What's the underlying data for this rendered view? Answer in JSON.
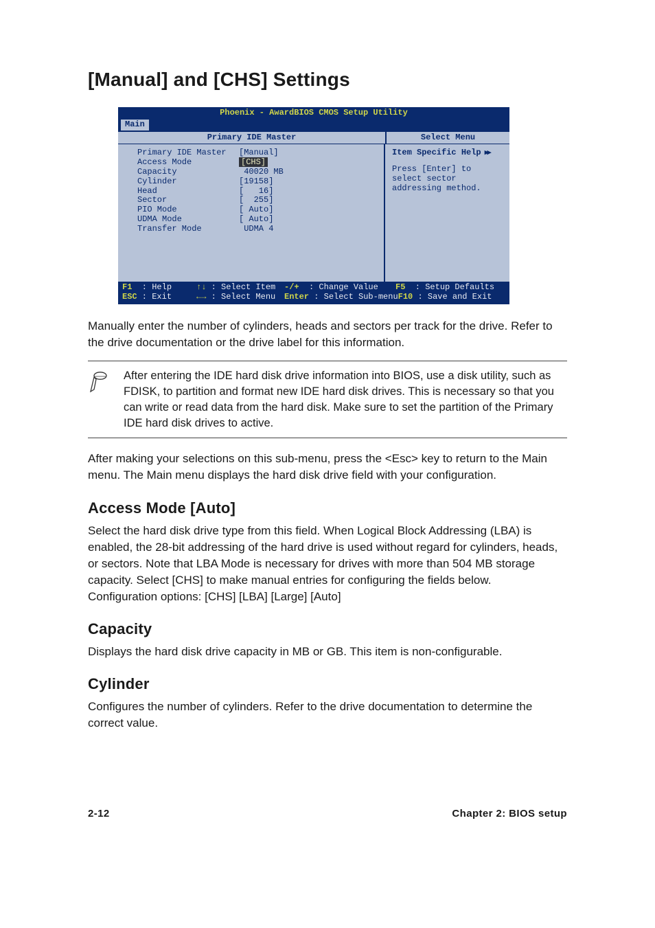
{
  "page_title": "[Manual] and [CHS] Settings",
  "bios": {
    "banner": "Phoenix - AwardBIOS CMOS Setup Utility",
    "tab": "Main",
    "panel_title_left": "Primary IDE Master",
    "panel_title_right": "Select Menu",
    "help_title": "Item Specific Help",
    "help_text": "Press [Enter] to\nselect sector\naddressing method.",
    "rows": [
      {
        "label": "Primary IDE Master",
        "value": "[Manual]",
        "hl": false
      },
      {
        "label": "Access Mode",
        "value": "[CHS]",
        "hl": true
      },
      {
        "label": "",
        "value": "",
        "hl": false
      },
      {
        "label": "Capacity",
        "value": " 40020 MB",
        "hl": false
      },
      {
        "label": "",
        "value": "",
        "hl": false
      },
      {
        "label": "Cylinder",
        "value": "[19158]",
        "hl": false
      },
      {
        "label": "Head",
        "value": "[   16]",
        "hl": false
      },
      {
        "label": "Sector",
        "value": "[  255]",
        "hl": false
      },
      {
        "label": "PIO Mode",
        "value": "[ Auto]",
        "hl": false
      },
      {
        "label": "UDMA Mode",
        "value": "[ Auto]",
        "hl": false
      },
      {
        "label": "Transfer Mode",
        "value": " UDMA 4",
        "hl": false
      }
    ],
    "footer": {
      "r1c1_key": "F1",
      "r1c1_txt": "Help",
      "r1c2_key": "↑↓",
      "r1c2_txt": "Select Item",
      "r1c3_key": "-/+",
      "r1c3_txt": "Change Value",
      "r1c4_key": "F5",
      "r1c4_txt": "Setup Defaults",
      "r2c1_key": "ESC",
      "r2c1_txt": "Exit",
      "r2c2_key": "←→",
      "r2c2_txt": "Select Menu",
      "r2c3_key": "Enter",
      "r2c3_txt": "Select Sub-menu",
      "r2c4_key": "F10",
      "r2c4_txt": "Save and Exit"
    },
    "colors": {
      "bg": "#b7c3d8",
      "frame": "#0a2a6d",
      "accent": "#cfd54a",
      "hl_bg": "#30333a",
      "hl_fg": "#e8e8c0"
    }
  },
  "para_manual": "Manually enter the number of cylinders, heads and sectors per track for the drive. Refer to the drive documentation or the drive label for this information.",
  "note_text": "After entering the IDE hard disk drive information into BIOS, use a disk utility, such as FDISK, to partition and format new IDE hard disk drives. This is necessary so that you can write or read data from the hard disk. Make sure to set the partition of the Primary IDE hard disk drives to active.",
  "para_after": "After making your selections on this sub-menu, press the <Esc> key to return to the Main menu. The Main menu displays the hard disk drive field with your configuration.",
  "sections": {
    "access": {
      "h": "Access Mode [Auto]",
      "p": "Select the hard disk drive type from this field. When Logical Block Addressing (LBA) is enabled, the 28-bit addressing of the hard drive is used without regard for cylinders, heads, or sectors. Note that LBA Mode is necessary for drives with more than 504 MB storage capacity. Select [CHS] to make manual entries for configuring the fields below.",
      "cfg": "Configuration options: [CHS] [LBA] [Large] [Auto]"
    },
    "capacity": {
      "h": "Capacity",
      "p": "Displays the hard disk drive capacity in MB or GB. This item is non-configurable."
    },
    "cyl": {
      "h": "Cylinder",
      "p": "Configures the number of cylinders. Refer to the drive documentation to determine the correct value."
    }
  },
  "footer": {
    "left": "2-12",
    "right": "Chapter 2: BIOS setup"
  }
}
